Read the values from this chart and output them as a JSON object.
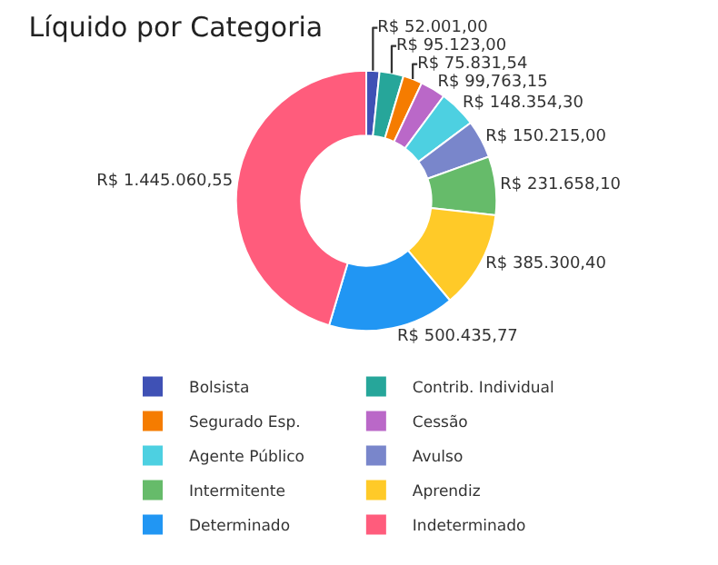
{
  "chart_data": {
    "type": "donut",
    "title": "Líquido por Categoria",
    "categories": [
      "Bolsista",
      "Contrib. Individual",
      "Segurado Esp.",
      "Cessão",
      "Agente Público",
      "Avulso",
      "Intermitente",
      "Aprendiz",
      "Determinado",
      "Indeterminado"
    ],
    "values": [
      52001.0,
      95123.0,
      75831.54,
      99763.15,
      148354.3,
      150215.0,
      231658.1,
      385300.4,
      500435.77,
      1445060.55
    ],
    "value_labels": [
      "R$ 52.001,00",
      "R$ 95.123,00",
      "R$ 75.831,54",
      "R$ 99,763,15",
      "R$ 148.354,30",
      "R$ 150.215,00",
      "R$ 231.658,10",
      "R$ 385.300,40",
      "R$ 500.435,77",
      "R$ 1.445.060,55"
    ],
    "colors": [
      "#3f51b5",
      "#26a69a",
      "#f57c00",
      "#ba68c8",
      "#4dd0e1",
      "#7986cb",
      "#66bb6a",
      "#ffca28",
      "#2196f3",
      "#ff5c7c"
    ],
    "legend": "bottom"
  }
}
